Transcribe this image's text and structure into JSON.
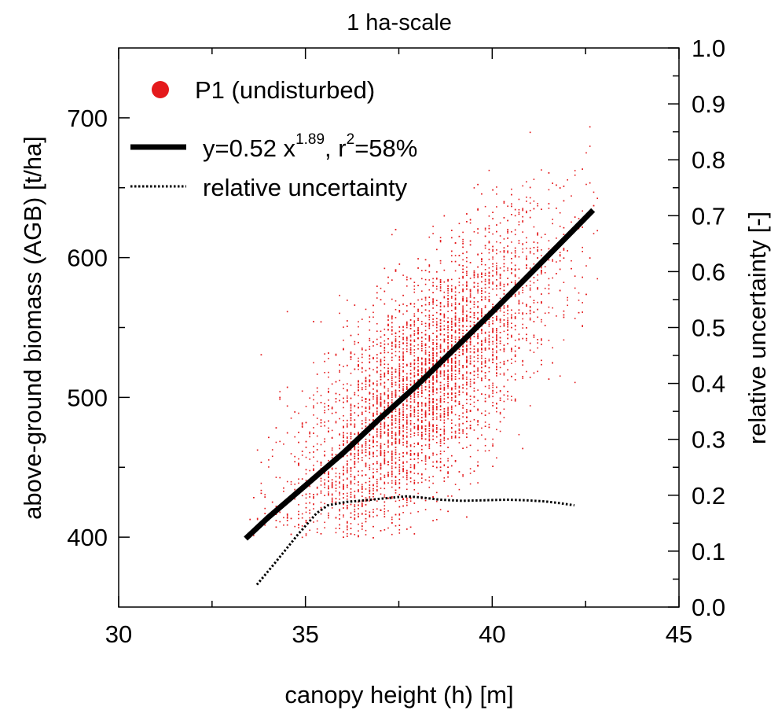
{
  "chart_data": {
    "type": "scatter",
    "title": "1 ha-scale",
    "xlabel": "canopy height (h) [m]",
    "ylabel": "above-ground biomass (AGB) [t/ha]",
    "y2label": "relative uncertainty [-]",
    "xlim": [
      30,
      45
    ],
    "ylim": [
      350,
      750
    ],
    "y2lim": [
      0.0,
      1.0
    ],
    "x_ticks": [
      "30",
      "35",
      "40",
      "45"
    ],
    "y_ticks": [
      "400",
      "500",
      "600",
      "700"
    ],
    "y2_ticks": [
      "0.0",
      "0.1",
      "0.2",
      "0.3",
      "0.4",
      "0.5",
      "0.6",
      "0.7",
      "0.8",
      "0.9",
      "1.0"
    ],
    "grid": false,
    "legend_position": "top-left",
    "series": [
      {
        "name": "P1 (undisturbed)",
        "kind": "scatter",
        "color": "#e41a1c",
        "cloud": {
          "x_range": [
            33.4,
            42.8
          ],
          "fit_a": 0.52,
          "fit_b": 1.89,
          "y_spread_sd": 40,
          "n_points": 6000
        }
      },
      {
        "name": "fit",
        "kind": "line",
        "color": "#000000",
        "style": "solid",
        "formula": {
          "a": 0.52,
          "b": 1.89
        },
        "x": [
          33.4,
          34.0,
          35.0,
          36.0,
          37.0,
          38.0,
          39.0,
          40.0,
          41.0,
          42.0,
          42.7
        ],
        "y": [
          399,
          414,
          437,
          460,
          485,
          509,
          535,
          561,
          588,
          615,
          634
        ]
      },
      {
        "name": "relative uncertainty",
        "kind": "line",
        "axis": "y2",
        "color": "#000000",
        "style": "dotted",
        "x": [
          33.7,
          34.2,
          34.8,
          35.3,
          35.6,
          36.1,
          36.6,
          37.2,
          37.7,
          38.1,
          38.6,
          39.2,
          39.8,
          40.4,
          40.9,
          41.4,
          41.8,
          42.2
        ],
        "y": [
          0.04,
          0.08,
          0.13,
          0.168,
          0.182,
          0.188,
          0.191,
          0.195,
          0.198,
          0.196,
          0.192,
          0.19,
          0.191,
          0.192,
          0.191,
          0.189,
          0.186,
          0.182
        ]
      }
    ],
    "legend": [
      {
        "label_main": "P1 (undisturbed)"
      },
      {
        "label_main": "y=0.52 x",
        "label_sup": "1.89",
        "label_mid": ", r",
        "label_sup2": "2",
        "label_tail": "=58%"
      },
      {
        "label_main": "relative uncertainty"
      }
    ]
  }
}
